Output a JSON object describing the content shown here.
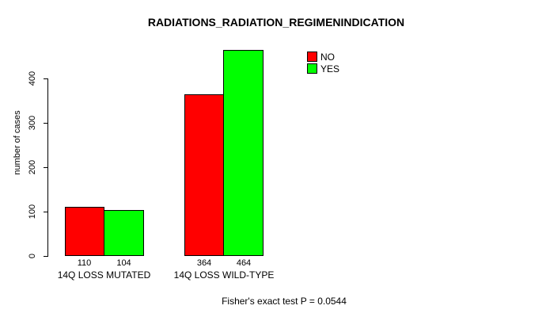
{
  "chart_data": {
    "type": "bar",
    "title": "RADIATIONS_RADIATION_REGIMENINDICATION",
    "ylabel": "number of cases",
    "xlabel": "",
    "ylim": [
      0,
      400
    ],
    "yticks": [
      0,
      100,
      200,
      300,
      400
    ],
    "grid": false,
    "legend_position": "top-right",
    "categories": [
      "14Q LOSS MUTATED",
      "14Q LOSS WILD-TYPE"
    ],
    "series": [
      {
        "name": "NO",
        "color": "#ff0000",
        "values": [
          110,
          364
        ]
      },
      {
        "name": "YES",
        "color": "#00ff00",
        "values": [
          104,
          464
        ]
      }
    ],
    "footer": "Fisher's exact test P = 0.0544"
  }
}
